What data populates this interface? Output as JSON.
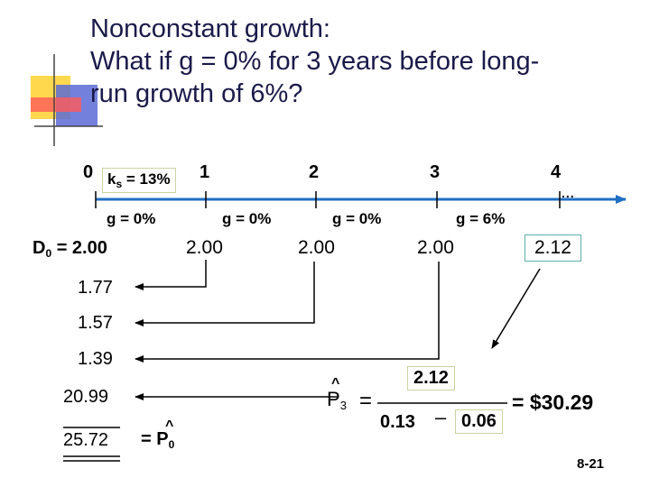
{
  "title": {
    "line1": "Nonconstant growth:",
    "line2": "What if g = 0% for 3 years before long-",
    "line3": "run growth of 6%?"
  },
  "timeline": {
    "t0": "0",
    "t1": "1",
    "t2": "2",
    "t3": "3",
    "t4": "4",
    "dots": "...",
    "ks_prefix": "k",
    "ks_sub": "s",
    "ks_suffix": " = 13%"
  },
  "growth": {
    "g1": "g = 0%",
    "g2": "g = 0%",
    "g3": "g = 0%",
    "g4": "g = 6%"
  },
  "dividends": {
    "d0_prefix": "D",
    "d0_sub": "0",
    "d0_suffix": " = 2.00",
    "d1": "2.00",
    "d2": "2.00",
    "d3": "2.00",
    "d4": "2.12"
  },
  "pv": {
    "v1": "1.77",
    "v2": "1.57",
    "v3": "1.39",
    "v4": "20.99",
    "total": "25.72",
    "p0_eq": "= P",
    "p0_sub": "0"
  },
  "formula": {
    "p3": "P",
    "p3_sub": "3",
    "eq": "=",
    "numerator": "2.12",
    "denom_a": "0.13",
    "minus": "–",
    "denom_b": "0.06",
    "result": "= $30.29"
  },
  "slide_number": "8-21",
  "colors": {
    "title": "#1a1a4a",
    "accent_yellow": "#ffd84d",
    "accent_red": "#ff4444",
    "accent_blue": "#5a6bd6",
    "timeline_blue": "#1f6fc4"
  }
}
